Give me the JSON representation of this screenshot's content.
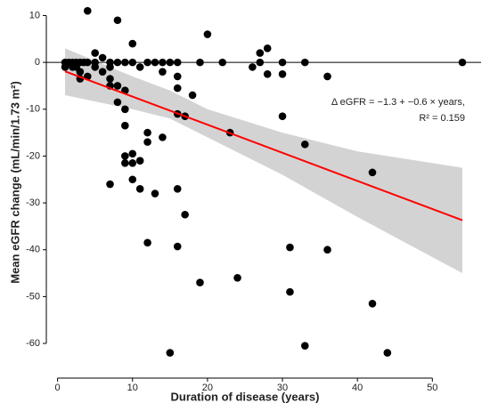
{
  "chart_data": {
    "type": "scatter",
    "x_label": "Duration of disease (years)",
    "y_label": "Mean eGFR change (mL/min/1.73 m²)",
    "annotations": [
      "Δ eGFR = −1.3 + −0.6 × years,",
      "R² = 0.159"
    ],
    "x": [
      1,
      1,
      1.5,
      2,
      2,
      2.5,
      2.5,
      3,
      3,
      3,
      3.5,
      4,
      4,
      4,
      5,
      5,
      5,
      6,
      6,
      7,
      7,
      7,
      7,
      7,
      8,
      8,
      8,
      8,
      9,
      9,
      9,
      9,
      9,
      9,
      10,
      10,
      10,
      10,
      10,
      11,
      11,
      11,
      12,
      12,
      12,
      12,
      13,
      13,
      14,
      14,
      14,
      15,
      15,
      16,
      16,
      16,
      16,
      16,
      16,
      17,
      17,
      18,
      19,
      19,
      20,
      22,
      23,
      24,
      26,
      27,
      27,
      28,
      28,
      30,
      30,
      30,
      31,
      31,
      33,
      33,
      33,
      36,
      36,
      42,
      42,
      44,
      54
    ],
    "values": [
      -1,
      0,
      0,
      0,
      -1,
      0,
      -1,
      -2,
      -3.5,
      0,
      0,
      11,
      -3,
      0,
      2,
      0,
      -1,
      1,
      -2,
      -1,
      -3.5,
      -5,
      0,
      -26,
      9,
      -5,
      -8.5,
      0,
      0,
      -6,
      -10,
      -13.5,
      -20,
      -21.5,
      4,
      0,
      -19.5,
      -21.5,
      -25,
      -1,
      -21,
      -27,
      0,
      -15,
      -17,
      -38.5,
      0,
      -28,
      0,
      -2,
      -16,
      0,
      -62,
      0,
      -3,
      -5.5,
      -11,
      -27,
      -39.3,
      -11.5,
      -32.5,
      -7,
      0,
      -47,
      6,
      0,
      -15,
      -46,
      -1,
      2,
      0,
      3,
      -2.5,
      0,
      -2.5,
      -11.5,
      -39.5,
      -49,
      0,
      -17.5,
      -60.5,
      -3,
      -40,
      -23.5,
      -51.5,
      -62,
      0
    ],
    "color": "#000000",
    "fit": {
      "color": "#ff0000",
      "x": [
        1,
        54
      ],
      "values": [
        -1.9,
        -33.7
      ]
    },
    "band": {
      "color": "#d3d3d3",
      "x": [
        1,
        10,
        15,
        20,
        30,
        40,
        54
      ],
      "upper": [
        3,
        -3,
        -6,
        -10,
        -15,
        -19,
        -22.5
      ],
      "lower": [
        -7,
        -10,
        -12,
        -16,
        -24,
        -33,
        -45
      ]
    },
    "hline": 0,
    "xlim": [
      -1.5,
      56.5
    ],
    "ylim": [
      -67.4,
      11.8
    ],
    "xticks": [
      0,
      10,
      20,
      30,
      40,
      50
    ],
    "yticks": [
      -60,
      -50,
      -40,
      -30,
      -20,
      -10,
      0,
      10
    ]
  }
}
